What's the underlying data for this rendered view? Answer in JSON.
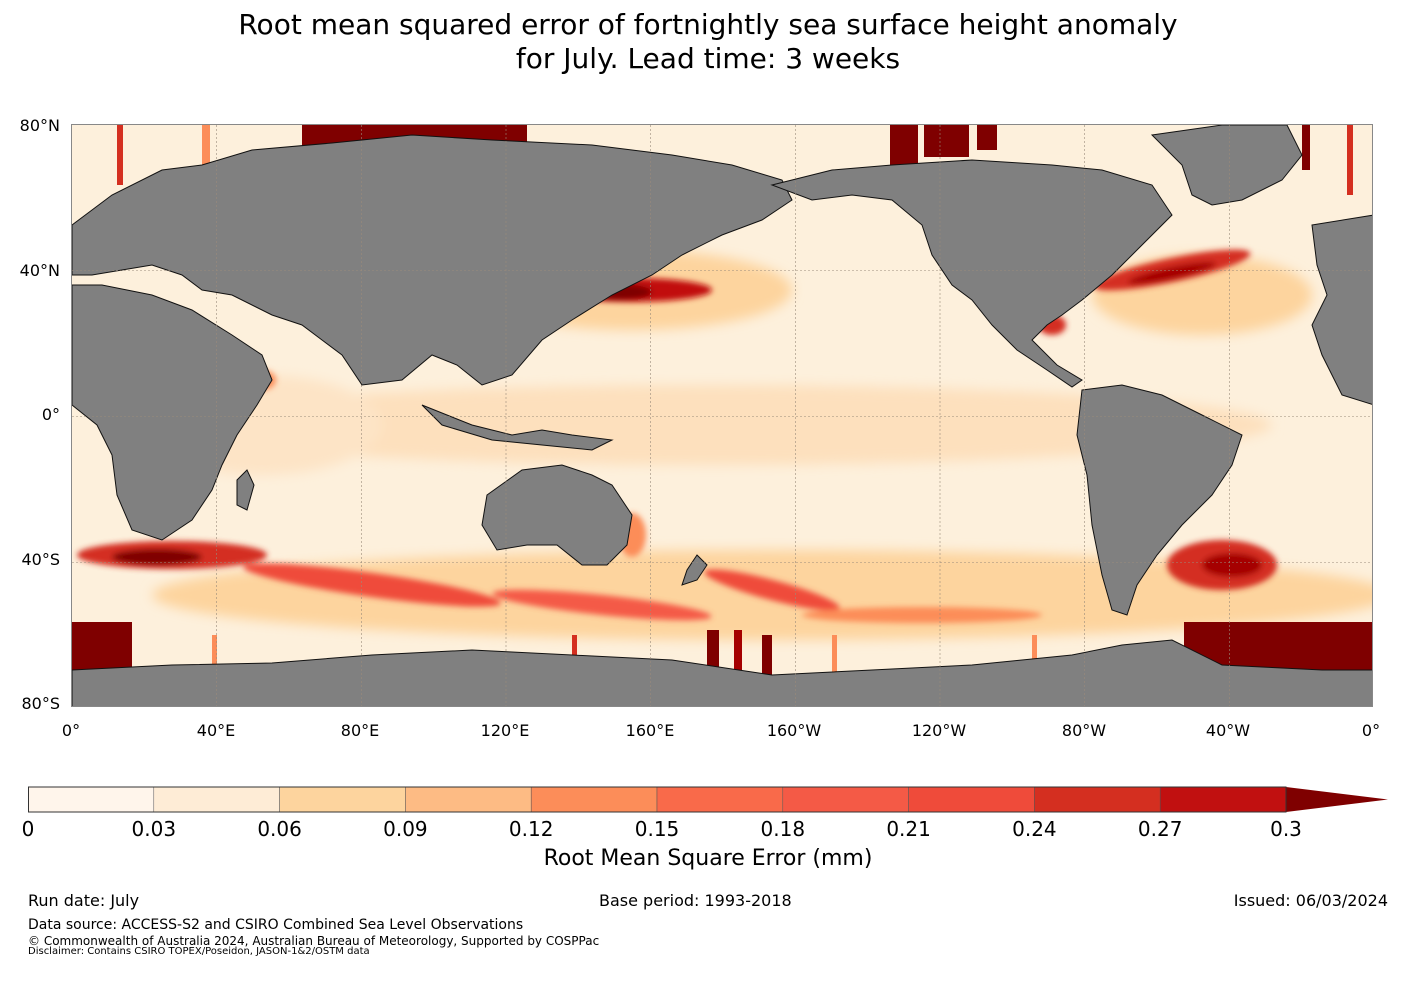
{
  "title": {
    "line1": "Root mean squared error of fortnightly sea surface height anomaly",
    "line2": "for July. Lead time: 3 weeks"
  },
  "map": {
    "lat_labels": [
      "80°N",
      "40°N",
      "0°",
      "40°S",
      "80°S"
    ],
    "lon_labels": [
      "0°",
      "40°E",
      "80°E",
      "120°E",
      "160°E",
      "160°W",
      "120°W",
      "80°W",
      "40°W",
      "0°"
    ],
    "colors": {
      "land": "#808080",
      "ocean_low": "#fff5e8",
      "ocean_mid": "#fdd0a2",
      "ocean_high": "#d7301f",
      "ocean_max": "#7f0000"
    }
  },
  "colorbar": {
    "ticks": [
      "0",
      "0.03",
      "0.06",
      "0.09",
      "0.12",
      "0.15",
      "0.18",
      "0.21",
      "0.24",
      "0.27",
      "0.3"
    ],
    "colors": [
      "#fff5eb",
      "#feecd6",
      "#fdd49e",
      "#fdbb84",
      "#fc8d59",
      "#f96a4a",
      "#f45a46",
      "#ef4b3a",
      "#d42f20",
      "#c11010",
      "#a50000"
    ],
    "extend_color": "#7f0000",
    "label": "Root Mean Square Error (mm)"
  },
  "footer": {
    "run_date": "Run date: July",
    "base_period": "Base period: 1993-2018",
    "issued": "Issued: 06/03/2024",
    "data_source": "Data source: ACCESS-S2 and CSIRO Combined Sea Level Observations",
    "copyright": "© Commonwealth of Australia 2024, Australian Bureau of Meteorology, Supported by COSPPac",
    "disclaimer": "Disclaimer: Contains CSIRO TOPEX/Poseidon, JASON-1&2/OSTM data"
  }
}
